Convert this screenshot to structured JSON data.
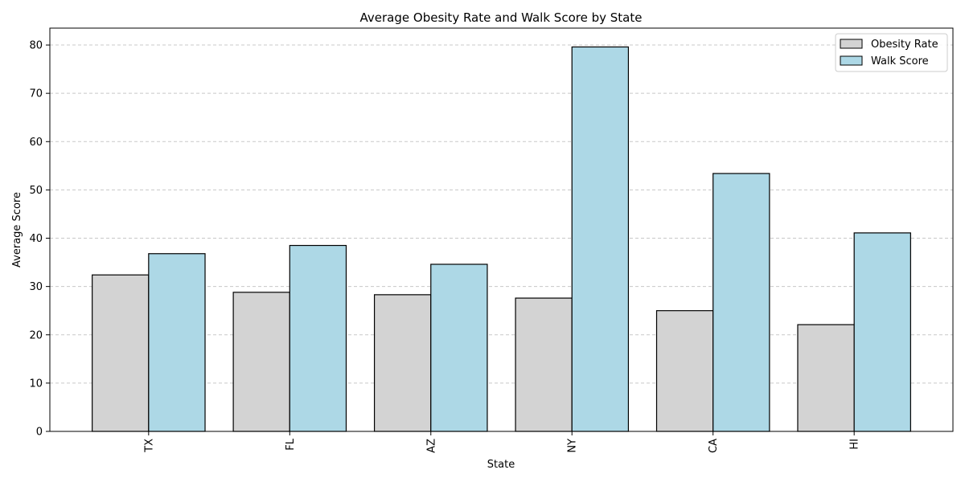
{
  "chart_data": {
    "type": "bar",
    "title": "Average Obesity Rate and Walk Score by State",
    "xlabel": "State",
    "ylabel": "Average Score",
    "categories": [
      "TX",
      "FL",
      "AZ",
      "NY",
      "CA",
      "HI"
    ],
    "series": [
      {
        "name": "Obesity Rate",
        "values": [
          32.4,
          28.8,
          28.3,
          27.6,
          25.0,
          22.1
        ],
        "color": "#d3d3d3"
      },
      {
        "name": "Walk Score",
        "values": [
          36.8,
          38.5,
          34.6,
          79.6,
          53.4,
          41.1
        ],
        "color": "#add8e6"
      }
    ],
    "ylim": [
      0,
      83.5
    ],
    "yticks": [
      0,
      10,
      20,
      30,
      40,
      50,
      60,
      70,
      80
    ],
    "grid": "y-dashed",
    "legend": "top-right"
  }
}
